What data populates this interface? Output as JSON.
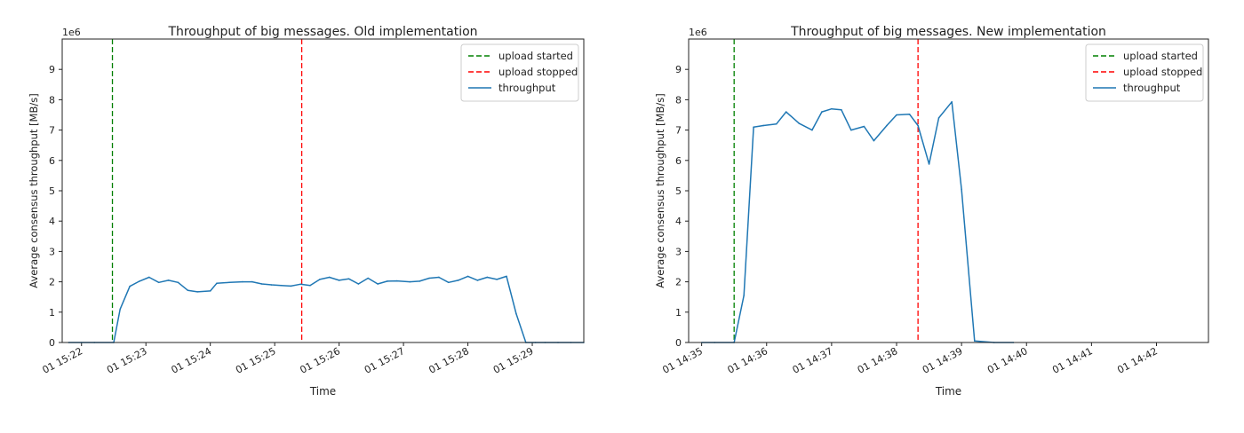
{
  "chart_data": [
    {
      "type": "line",
      "title": "Throughput of big messages. Old implementation",
      "xlabel": "Time",
      "ylabel": "Average consensus throughput [MB/s]",
      "y_scale_label": "1e6",
      "ylim": [
        0,
        10
      ],
      "yticks": [
        0,
        1,
        2,
        3,
        4,
        5,
        6,
        7,
        8,
        9
      ],
      "xlim": [
        -0.3,
        7.8
      ],
      "xticks": [
        {
          "value": 0,
          "label": "01 15:22"
        },
        {
          "value": 1,
          "label": "01 15:23"
        },
        {
          "value": 2,
          "label": "01 15:24"
        },
        {
          "value": 3,
          "label": "01 15:25"
        },
        {
          "value": 4,
          "label": "01 15:26"
        },
        {
          "value": 5,
          "label": "01 15:27"
        },
        {
          "value": 6,
          "label": "01 15:28"
        },
        {
          "value": 7,
          "label": "01 15:29"
        }
      ],
      "x_unit": "minutes after 01 15:22",
      "vlines": [
        {
          "name": "upload started",
          "x": 0.48,
          "color": "#008000"
        },
        {
          "name": "upload stopped",
          "x": 3.42,
          "color": "#ff0000"
        }
      ],
      "series": [
        {
          "name": "throughput",
          "color": "#1f77b4",
          "x": [
            -0.2,
            0.0,
            0.2,
            0.5,
            0.6,
            0.75,
            0.9,
            1.05,
            1.2,
            1.35,
            1.5,
            1.65,
            1.8,
            2.0,
            2.1,
            2.3,
            2.5,
            2.65,
            2.8,
            2.95,
            3.1,
            3.25,
            3.4,
            3.55,
            3.7,
            3.85,
            4.0,
            4.15,
            4.3,
            4.45,
            4.6,
            4.75,
            4.9,
            5.1,
            5.25,
            5.4,
            5.55,
            5.7,
            5.85,
            6.0,
            6.15,
            6.3,
            6.45,
            6.6,
            6.75,
            6.9,
            7.05,
            7.2,
            7.4,
            7.6,
            7.8
          ],
          "values": [
            0.0,
            0.0,
            0.0,
            0.0,
            1.1,
            1.85,
            2.02,
            2.15,
            1.98,
            2.05,
            1.98,
            1.72,
            1.67,
            1.7,
            1.95,
            1.98,
            2.0,
            2.0,
            1.93,
            1.9,
            1.88,
            1.86,
            1.92,
            1.88,
            2.08,
            2.15,
            2.05,
            2.1,
            1.93,
            2.12,
            1.93,
            2.02,
            2.03,
            2.0,
            2.02,
            2.12,
            2.15,
            1.98,
            2.05,
            2.18,
            2.05,
            2.15,
            2.08,
            2.18,
            0.95,
            0.0,
            0.0,
            0.0,
            0.0,
            0.0,
            0.0
          ]
        }
      ],
      "legend": {
        "placement": "top-right",
        "entries": [
          "upload started",
          "upload stopped",
          "throughput"
        ]
      }
    },
    {
      "type": "line",
      "title": "Throughput of big messages. New implementation",
      "xlabel": "Time",
      "ylabel": "Average consensus throughput [MB/s]",
      "y_scale_label": "1e6",
      "ylim": [
        0,
        10
      ],
      "yticks": [
        0,
        1,
        2,
        3,
        4,
        5,
        6,
        7,
        8,
        9
      ],
      "xlim": [
        -0.2,
        7.8
      ],
      "xticks": [
        {
          "value": 0,
          "label": "01 14:35"
        },
        {
          "value": 1,
          "label": "01 14:36"
        },
        {
          "value": 2,
          "label": "01 14:37"
        },
        {
          "value": 3,
          "label": "01 14:38"
        },
        {
          "value": 4,
          "label": "01 14:39"
        },
        {
          "value": 5,
          "label": "01 14:40"
        },
        {
          "value": 6,
          "label": "01 14:41"
        },
        {
          "value": 7,
          "label": "01 14:42"
        }
      ],
      "x_unit": "minutes after 01 14:35",
      "vlines": [
        {
          "name": "upload started",
          "x": 0.5,
          "color": "#008000"
        },
        {
          "name": "upload stopped",
          "x": 3.33,
          "color": "#ff0000"
        }
      ],
      "series": [
        {
          "name": "throughput",
          "color": "#1f77b4",
          "x": [
            0.0,
            0.2,
            0.5,
            0.65,
            0.8,
            0.95,
            1.15,
            1.3,
            1.5,
            1.7,
            1.85,
            2.0,
            2.15,
            2.3,
            2.5,
            2.65,
            2.85,
            3.0,
            3.2,
            3.33,
            3.5,
            3.65,
            3.85,
            4.0,
            4.2,
            4.5,
            4.8
          ],
          "values": [
            0.0,
            0.0,
            0.0,
            1.55,
            7.1,
            7.15,
            7.2,
            7.6,
            7.22,
            7.0,
            7.6,
            7.7,
            7.67,
            7.0,
            7.12,
            6.65,
            7.15,
            7.5,
            7.52,
            7.15,
            5.88,
            7.4,
            7.93,
            5.05,
            0.05,
            0.0,
            0.0
          ]
        }
      ],
      "legend": {
        "placement": "top-right",
        "entries": [
          "upload started",
          "upload stopped",
          "throughput"
        ]
      }
    }
  ]
}
